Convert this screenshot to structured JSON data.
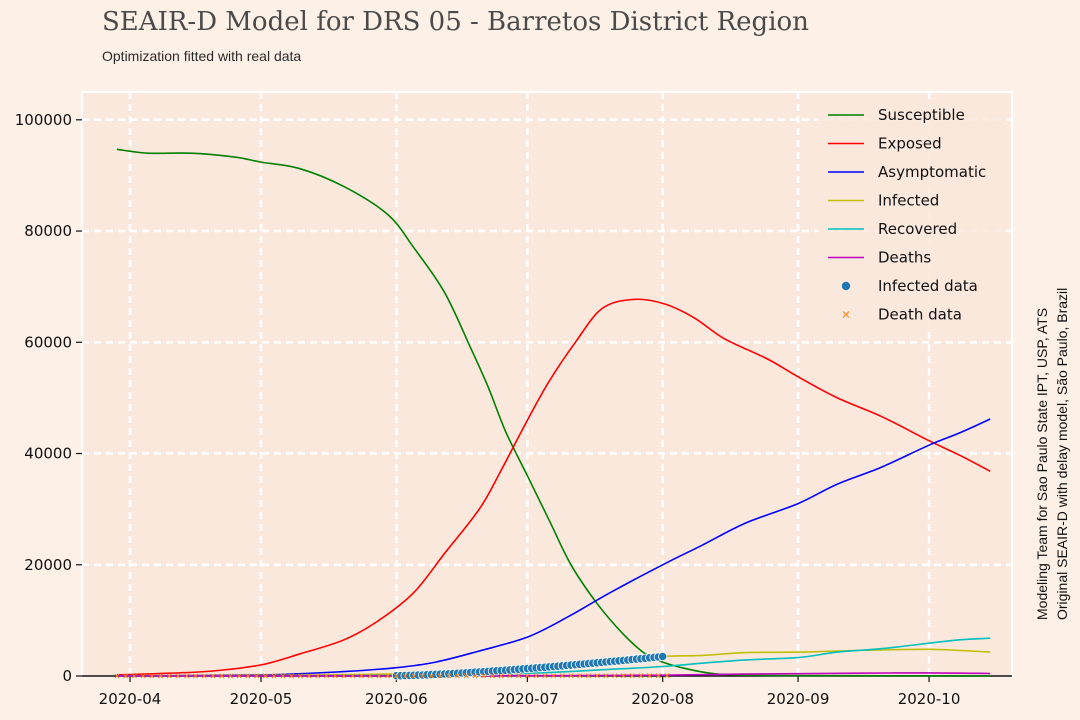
{
  "chart_data": {
    "type": "line",
    "title": "SEAIR-D Model for DRS 05 - Barretos District Region",
    "subtitle": "Optimization fitted with real data",
    "side_note": [
      "Modeling Team for Sao Paulo State IPT, USP, ATS",
      "Original SEAIR-D with delay model, São Paulo, Brazil"
    ],
    "xlim": [
      "2020-03-21",
      "2020-10-20"
    ],
    "ylim": [
      0,
      105000
    ],
    "x_ticks": [
      "2020-04-01",
      "2020-05-01",
      "2020-06-01",
      "2020-07-01",
      "2020-08-01",
      "2020-09-01",
      "2020-10-01"
    ],
    "x_tick_labels": [
      "2020-04",
      "2020-05",
      "2020-06",
      "2020-07",
      "2020-08",
      "2020-09",
      "2020-10"
    ],
    "y_ticks": [
      0,
      20000,
      40000,
      60000,
      80000,
      100000
    ],
    "y_tick_labels": [
      "0",
      "20000",
      "40000",
      "60000",
      "80000",
      "100000"
    ],
    "grid": true,
    "legend_position": "top-right",
    "series": [
      {
        "name": "Susceptible",
        "kind": "line",
        "color": "#008000",
        "points": [
          [
            "2020-03-29",
            94700
          ],
          [
            "2020-04-05",
            94000
          ],
          [
            "2020-04-15",
            94000
          ],
          [
            "2020-04-25",
            93300
          ],
          [
            "2020-05-01",
            92400
          ],
          [
            "2020-05-10",
            91200
          ],
          [
            "2020-05-20",
            88000
          ],
          [
            "2020-05-30",
            83000
          ],
          [
            "2020-06-05",
            77000
          ],
          [
            "2020-06-12",
            69000
          ],
          [
            "2020-06-18",
            59000
          ],
          [
            "2020-06-22",
            52000
          ],
          [
            "2020-06-26",
            44000
          ],
          [
            "2020-07-01",
            36000
          ],
          [
            "2020-07-06",
            28000
          ],
          [
            "2020-07-11",
            20000
          ],
          [
            "2020-07-17",
            13000
          ],
          [
            "2020-07-23",
            7500
          ],
          [
            "2020-07-28",
            4000
          ],
          [
            "2020-08-01",
            2500
          ],
          [
            "2020-08-07",
            1200
          ],
          [
            "2020-08-13",
            400
          ],
          [
            "2020-08-20",
            150
          ],
          [
            "2020-09-01",
            60
          ],
          [
            "2020-10-15",
            20
          ]
        ]
      },
      {
        "name": "Exposed",
        "kind": "line",
        "color": "#ff0000",
        "points": [
          [
            "2020-03-29",
            200
          ],
          [
            "2020-04-10",
            500
          ],
          [
            "2020-04-20",
            900
          ],
          [
            "2020-05-01",
            2000
          ],
          [
            "2020-05-10",
            4000
          ],
          [
            "2020-05-20",
            6500
          ],
          [
            "2020-05-28",
            10000
          ],
          [
            "2020-06-05",
            15000
          ],
          [
            "2020-06-12",
            22000
          ],
          [
            "2020-06-20",
            30000
          ],
          [
            "2020-06-25",
            37000
          ],
          [
            "2020-07-01",
            46000
          ],
          [
            "2020-07-06",
            53000
          ],
          [
            "2020-07-12",
            60000
          ],
          [
            "2020-07-18",
            66000
          ],
          [
            "2020-07-25",
            67700
          ],
          [
            "2020-08-01",
            67000
          ],
          [
            "2020-08-08",
            64500
          ],
          [
            "2020-08-15",
            60700
          ],
          [
            "2020-08-25",
            57000
          ],
          [
            "2020-09-01",
            53800
          ],
          [
            "2020-09-10",
            50000
          ],
          [
            "2020-09-20",
            46700
          ],
          [
            "2020-10-01",
            42300
          ],
          [
            "2020-10-08",
            39700
          ],
          [
            "2020-10-15",
            36800
          ]
        ]
      },
      {
        "name": "Asymptomatic",
        "kind": "line",
        "color": "#0000ff",
        "points": [
          [
            "2020-03-29",
            0
          ],
          [
            "2020-05-01",
            200
          ],
          [
            "2020-05-20",
            800
          ],
          [
            "2020-06-01",
            1500
          ],
          [
            "2020-06-10",
            2500
          ],
          [
            "2020-06-20",
            4500
          ],
          [
            "2020-07-01",
            7000
          ],
          [
            "2020-07-10",
            10500
          ],
          [
            "2020-07-20",
            15000
          ],
          [
            "2020-08-01",
            20000
          ],
          [
            "2020-08-10",
            23500
          ],
          [
            "2020-08-20",
            27500
          ],
          [
            "2020-09-01",
            31000
          ],
          [
            "2020-09-10",
            34500
          ],
          [
            "2020-09-20",
            37500
          ],
          [
            "2020-10-01",
            41500
          ],
          [
            "2020-10-08",
            43700
          ],
          [
            "2020-10-15",
            46200
          ]
        ]
      },
      {
        "name": "Infected",
        "kind": "line",
        "color": "#bfbf00",
        "points": [
          [
            "2020-03-29",
            0
          ],
          [
            "2020-05-01",
            100
          ],
          [
            "2020-06-01",
            400
          ],
          [
            "2020-07-01",
            1500
          ],
          [
            "2020-07-20",
            2700
          ],
          [
            "2020-08-01",
            3500
          ],
          [
            "2020-08-10",
            3700
          ],
          [
            "2020-08-20",
            4200
          ],
          [
            "2020-09-01",
            4300
          ],
          [
            "2020-09-10",
            4500
          ],
          [
            "2020-09-20",
            4700
          ],
          [
            "2020-10-01",
            4800
          ],
          [
            "2020-10-08",
            4600
          ],
          [
            "2020-10-15",
            4300
          ]
        ]
      },
      {
        "name": "Recovered",
        "kind": "line",
        "color": "#00bfbf",
        "points": [
          [
            "2020-03-29",
            0
          ],
          [
            "2020-06-01",
            100
          ],
          [
            "2020-07-01",
            500
          ],
          [
            "2020-07-20",
            1200
          ],
          [
            "2020-08-01",
            1700
          ],
          [
            "2020-08-10",
            2300
          ],
          [
            "2020-08-20",
            2900
          ],
          [
            "2020-09-01",
            3300
          ],
          [
            "2020-09-10",
            4300
          ],
          [
            "2020-09-20",
            4900
          ],
          [
            "2020-10-01",
            5900
          ],
          [
            "2020-10-08",
            6500
          ],
          [
            "2020-10-15",
            6800
          ]
        ]
      },
      {
        "name": "Deaths",
        "kind": "line",
        "color": "#bf00bf",
        "points": [
          [
            "2020-03-29",
            0
          ],
          [
            "2020-06-01",
            20
          ],
          [
            "2020-07-01",
            60
          ],
          [
            "2020-08-01",
            150
          ],
          [
            "2020-08-20",
            350
          ],
          [
            "2020-09-01",
            420
          ],
          [
            "2020-09-15",
            500
          ],
          [
            "2020-10-01",
            560
          ],
          [
            "2020-10-15",
            450
          ]
        ]
      },
      {
        "name": "Infected data",
        "kind": "dots",
        "color": "#1f77b4",
        "start": "2020-06-01",
        "end": "2020-08-01",
        "start_value": 50,
        "end_value": 3500,
        "step_days": 1
      },
      {
        "name": "Death data",
        "kind": "crosses",
        "color": "#ff7f0e",
        "start": "2020-03-29",
        "end": "2020-08-01",
        "start_value": 0,
        "end_value": 60,
        "step_days": 2
      }
    ]
  }
}
